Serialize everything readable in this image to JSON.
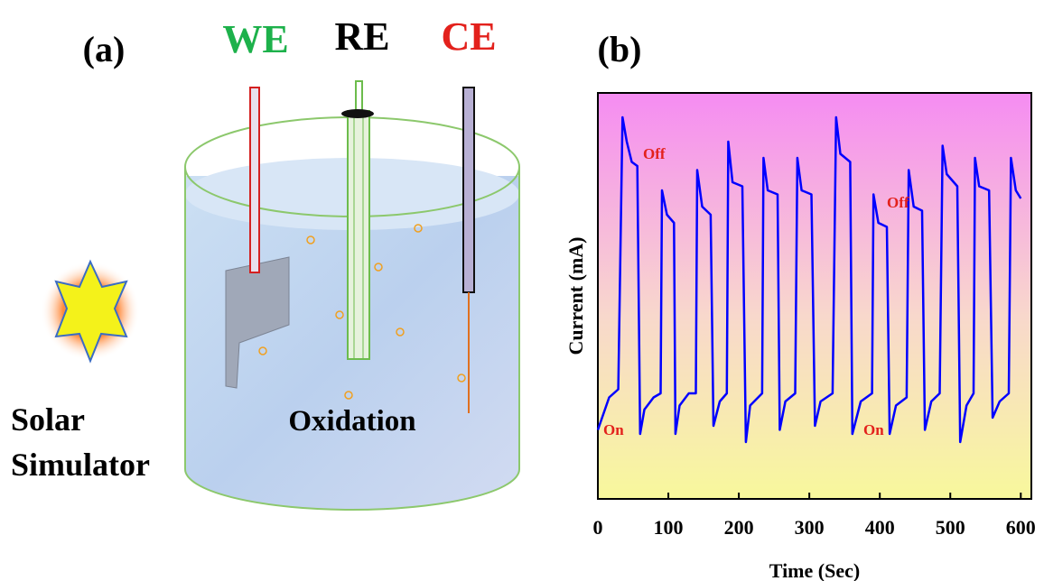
{
  "panel_a": {
    "label": "(a)",
    "electrodes": [
      "WE",
      "RE",
      "CE"
    ],
    "light_source": [
      "Solar",
      "Simulator"
    ],
    "process": "Oxidation"
  },
  "chart_data": {
    "type": "line",
    "label": "(b)",
    "xlabel": "Time (Sec)",
    "ylabel": "Current (mA)",
    "x": [
      0,
      16,
      29,
      35,
      41,
      48,
      56,
      60,
      66,
      79,
      89,
      91,
      98,
      108,
      110,
      116,
      129,
      139,
      141,
      148,
      160,
      164,
      173,
      183,
      185,
      191,
      205,
      210,
      216,
      233,
      235,
      241,
      255,
      258,
      266,
      280,
      283,
      289,
      303,
      308,
      316,
      333,
      338,
      344,
      358,
      361,
      373,
      389,
      391,
      398,
      410,
      414,
      423,
      438,
      441,
      448,
      460,
      464,
      473,
      485,
      489,
      495,
      510,
      514,
      523,
      533,
      535,
      541,
      555,
      560,
      570,
      583,
      586,
      593,
      600
    ],
    "series": [
      {
        "color": "#0000ff",
        "values": [
          17,
          25,
          27,
          94,
          88,
          83,
          82,
          16,
          22,
          25,
          26,
          76,
          70,
          68,
          16,
          23,
          26,
          26,
          81,
          72,
          70,
          18,
          24,
          26,
          88,
          78,
          77,
          14,
          23,
          26,
          84,
          76,
          75,
          17,
          24,
          26,
          84,
          76,
          75,
          18,
          24,
          26,
          94,
          85,
          83,
          16,
          24,
          26,
          75,
          68,
          67,
          16,
          23,
          25,
          81,
          72,
          71,
          17,
          24,
          26,
          87,
          80,
          77,
          14,
          23,
          26,
          84,
          77,
          76,
          20,
          24,
          26,
          84,
          76,
          74
        ]
      }
    ],
    "xlim": [
      0,
      615
    ],
    "ylim": [
      0,
      100
    ],
    "xticks": [
      0,
      100,
      200,
      300,
      400,
      500,
      600
    ],
    "annotations": [
      "On",
      "Off",
      "Off",
      "On"
    ]
  }
}
